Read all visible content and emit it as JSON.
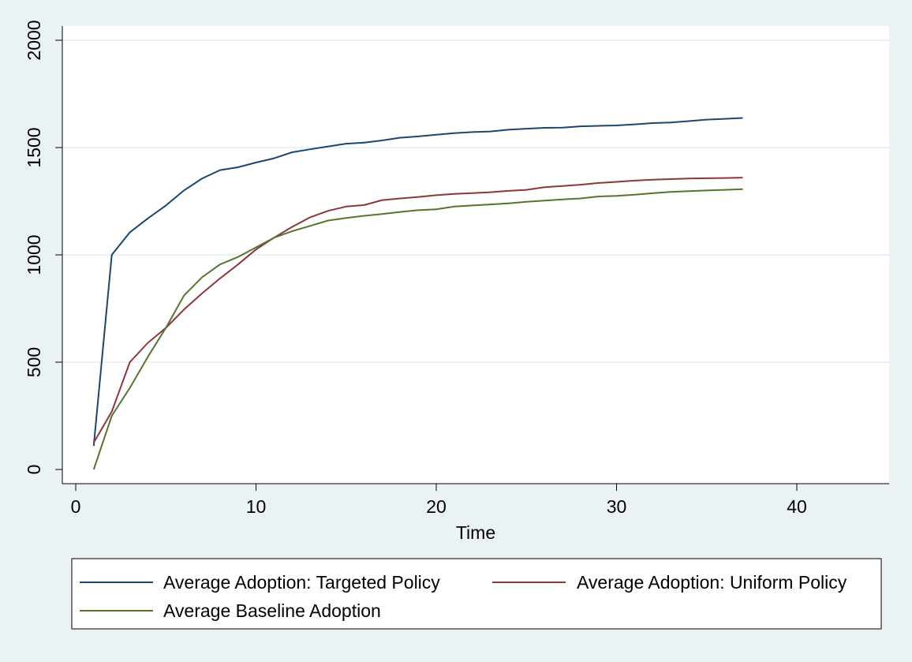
{
  "chart_data": {
    "type": "line",
    "title": "",
    "xlabel": "Time",
    "ylabel": "",
    "xlim": [
      0,
      40
    ],
    "ylim": [
      0,
      2000
    ],
    "x_ticks": [
      "0",
      "10",
      "20",
      "30",
      "40"
    ],
    "y_ticks": [
      "0",
      "500",
      "1000",
      "1500",
      "2000"
    ],
    "grid": "horizontal",
    "legend_position": "bottom",
    "series": [
      {
        "name": "Average Adoption: Targeted Policy",
        "color": "#1a476f",
        "x": [
          1,
          2,
          3,
          4,
          5,
          6,
          7,
          8,
          9,
          10,
          11,
          12,
          13,
          14,
          15,
          16,
          17,
          18,
          19,
          20,
          21,
          22,
          23,
          24,
          25,
          26,
          27,
          28,
          29,
          30,
          31,
          32,
          33,
          34,
          35,
          36,
          37
        ],
        "values": [
          110,
          1000,
          1105,
          1170,
          1230,
          1300,
          1355,
          1395,
          1408,
          1430,
          1450,
          1478,
          1492,
          1505,
          1518,
          1523,
          1533,
          1546,
          1552,
          1560,
          1567,
          1572,
          1575,
          1583,
          1588,
          1592,
          1593,
          1599,
          1601,
          1603,
          1608,
          1614,
          1617,
          1623,
          1630,
          1634,
          1638
        ]
      },
      {
        "name": "Average Adoption: Uniform Policy",
        "color": "#90353b",
        "x": [
          1,
          2,
          3,
          4,
          5,
          6,
          7,
          8,
          9,
          10,
          11,
          12,
          13,
          14,
          15,
          16,
          17,
          18,
          19,
          20,
          21,
          22,
          23,
          24,
          25,
          26,
          27,
          28,
          29,
          30,
          31,
          32,
          33,
          34,
          35,
          36,
          37
        ],
        "values": [
          125,
          270,
          500,
          590,
          660,
          745,
          820,
          890,
          955,
          1025,
          1080,
          1130,
          1175,
          1205,
          1225,
          1232,
          1255,
          1263,
          1270,
          1278,
          1284,
          1288,
          1292,
          1298,
          1303,
          1315,
          1321,
          1327,
          1335,
          1340,
          1346,
          1350,
          1353,
          1356,
          1357,
          1358,
          1360
        ]
      },
      {
        "name": "Average Baseline Adoption",
        "color": "#55752f",
        "x": [
          1,
          2,
          3,
          4,
          5,
          6,
          7,
          8,
          9,
          10,
          11,
          12,
          13,
          14,
          15,
          16,
          17,
          18,
          19,
          20,
          21,
          22,
          23,
          24,
          25,
          26,
          27,
          28,
          29,
          30,
          31,
          32,
          33,
          34,
          35,
          36,
          37
        ],
        "values": [
          0,
          250,
          380,
          525,
          660,
          810,
          895,
          955,
          990,
          1035,
          1080,
          1110,
          1135,
          1160,
          1172,
          1182,
          1190,
          1200,
          1208,
          1212,
          1225,
          1230,
          1235,
          1240,
          1247,
          1253,
          1258,
          1263,
          1272,
          1275,
          1280,
          1287,
          1293,
          1297,
          1300,
          1303,
          1306
        ]
      }
    ]
  }
}
